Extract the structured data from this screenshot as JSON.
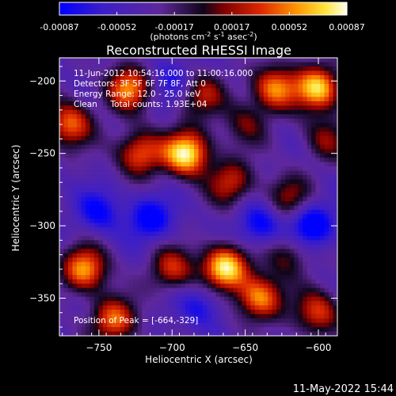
{
  "chart_data": {
    "type": "heatmap",
    "title": "Reconstructed RHESSI Image",
    "xlabel": "Heliocentric X (arcsec)",
    "ylabel": "Heliocentric Y (arcsec)",
    "xlim": [
      -777,
      -587
    ],
    "ylim": [
      -376,
      -184
    ],
    "xticks": [
      -750,
      -700,
      -650,
      -600
    ],
    "yticks": [
      -200,
      -250,
      -300,
      -350
    ],
    "colorbar": {
      "colormap": "hot-blue",
      "range": [
        -0.00087,
        0.00087
      ],
      "ticks": [
        "-0.00087",
        "-0.00052",
        "-0.00017",
        "0.00017",
        "0.00052",
        "0.00087"
      ],
      "unit_label_parts": [
        "(photons cm",
        "-2",
        " s",
        "-1",
        " asec",
        "-2",
        ")"
      ]
    },
    "info_lines": [
      "11-Jun-2012 10:54:16.000 to 11:00:16.000",
      "Detectors: 3F 5F 6F 7F 8F, Att 0",
      "Energy Range: 12.0 - 25.0 keV",
      "Clean     Total counts: 1.93E+04"
    ],
    "peak_label": "Position of Peak = [-664,-329]",
    "peak": [
      -664,
      -329
    ],
    "blobs": [
      {
        "x": -690,
        "y": -250,
        "amp": 1.0
      },
      {
        "x": -664,
        "y": -329,
        "amp": 1.0
      },
      {
        "x": -722,
        "y": -250,
        "amp": 0.7
      },
      {
        "x": -730,
        "y": -205,
        "amp": 0.75
      },
      {
        "x": -760,
        "y": -330,
        "amp": 0.8
      },
      {
        "x": -770,
        "y": -230,
        "amp": 0.7
      },
      {
        "x": -630,
        "y": -205,
        "amp": 0.75
      },
      {
        "x": -600,
        "y": -205,
        "amp": 0.9
      },
      {
        "x": -660,
        "y": -270,
        "amp": 0.55
      },
      {
        "x": -640,
        "y": -350,
        "amp": 0.8
      },
      {
        "x": -600,
        "y": -360,
        "amp": 0.6
      },
      {
        "x": -700,
        "y": -330,
        "amp": 0.55
      },
      {
        "x": -740,
        "y": -365,
        "amp": 0.7
      },
      {
        "x": -680,
        "y": -210,
        "amp": 0.5
      },
      {
        "x": -620,
        "y": -280,
        "amp": 0.45
      },
      {
        "x": -620,
        "y": -320,
        "amp": 0.4
      },
      {
        "x": -595,
        "y": -240,
        "amp": 0.4
      },
      {
        "x": -650,
        "y": -230,
        "amp": 0.35
      },
      {
        "x": -715,
        "y": -295,
        "amp": -0.5
      },
      {
        "x": -640,
        "y": -300,
        "amp": -0.45
      },
      {
        "x": -605,
        "y": -300,
        "amp": -0.6
      },
      {
        "x": -750,
        "y": -290,
        "amp": -0.4
      },
      {
        "x": -700,
        "y": -200,
        "amp": -0.3
      },
      {
        "x": -680,
        "y": -355,
        "amp": -0.35
      }
    ]
  },
  "footer": {
    "timestamp": "11-May-2022 15:44"
  }
}
